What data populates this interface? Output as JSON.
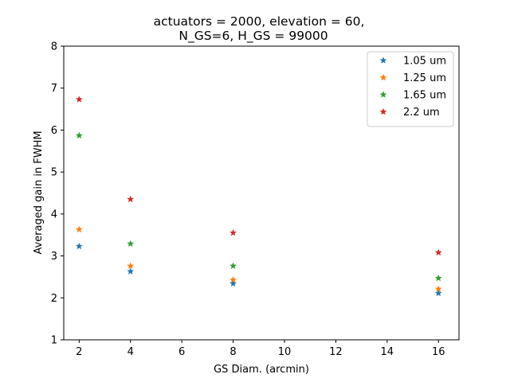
{
  "chart_data": {
    "type": "scatter",
    "title_lines": [
      "actuators = 2000, elevation = 60,",
      "N_GS=6, H_GS = 99000"
    ],
    "xlabel": "GS Diam. (arcmin)",
    "ylabel": "Averaged gain in FWHM",
    "xlim": [
      1.4,
      16.8
    ],
    "ylim": [
      1,
      8
    ],
    "xticks": [
      2,
      4,
      6,
      8,
      10,
      12,
      14,
      16
    ],
    "yticks": [
      1,
      2,
      3,
      4,
      5,
      6,
      7,
      8
    ],
    "grid": false,
    "legend_position": "top-right",
    "marker": "star",
    "x": [
      2,
      4,
      8,
      16
    ],
    "series": [
      {
        "name": "1.05 um",
        "color": "#1f77b4",
        "values": [
          3.23,
          2.63,
          2.34,
          2.11
        ]
      },
      {
        "name": "1.25 um",
        "color": "#ff7f0e",
        "values": [
          3.63,
          2.76,
          2.43,
          2.21
        ]
      },
      {
        "name": "1.65 um",
        "color": "#2ca02c",
        "values": [
          5.87,
          3.29,
          2.76,
          2.47
        ]
      },
      {
        "name": "2.2 um",
        "color": "#d62728",
        "values": [
          6.73,
          4.35,
          3.55,
          3.08
        ]
      }
    ]
  }
}
